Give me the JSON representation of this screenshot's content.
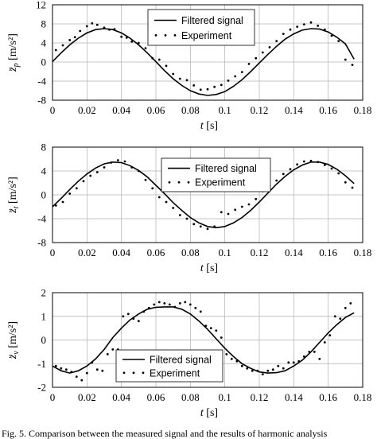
{
  "caption": "Fig. 5. Comparison between the measured signal and the results of harmonic analysis",
  "colors": {
    "line": "#000000",
    "grid": "#b0b0b0",
    "background": "#ffffff"
  },
  "chart_data": [
    {
      "type": "scatter",
      "ylabel_sym": "z̈",
      "ylabel_sub": "p",
      "ylabel_unit": "[m/s²]",
      "xlabel_sym": "t",
      "xlabel_unit": "[s]",
      "xlim": [
        0,
        0.18
      ],
      "ylim": [
        -8,
        12
      ],
      "xticks": [
        "0",
        "0.02",
        "0.04",
        "0.06",
        "0.08",
        "0.1",
        "0.12",
        "0.14",
        "0.16",
        "0.18"
      ],
      "yticks": [
        "-8",
        "-4",
        "0",
        "4",
        "8",
        "12"
      ],
      "xtick_vals": [
        0,
        0.02,
        0.04,
        0.06,
        0.08,
        0.1,
        0.12,
        0.14,
        0.16,
        0.18
      ],
      "ytick_vals": [
        -8,
        -4,
        0,
        4,
        8,
        12
      ],
      "grid": true,
      "legend": [
        "Filtered signal",
        "Experiment"
      ],
      "legend_loc": "top-center",
      "series": [
        {
          "name": "Filtered signal",
          "kind": "line",
          "x": [
            0,
            0.005,
            0.01,
            0.015,
            0.02,
            0.025,
            0.03,
            0.035,
            0.04,
            0.045,
            0.05,
            0.055,
            0.06,
            0.065,
            0.07,
            0.075,
            0.08,
            0.085,
            0.09,
            0.095,
            0.1,
            0.105,
            0.11,
            0.115,
            0.12,
            0.125,
            0.13,
            0.135,
            0.14,
            0.145,
            0.15,
            0.155,
            0.16,
            0.165,
            0.17,
            0.175
          ],
          "y": [
            0.1,
            1.9,
            3.6,
            5.0,
            6.1,
            6.8,
            7.0,
            6.8,
            6.1,
            5.0,
            3.6,
            1.9,
            0.1,
            -1.8,
            -3.5,
            -4.9,
            -6.0,
            -6.7,
            -7.0,
            -6.8,
            -6.2,
            -5.1,
            -3.7,
            -2.0,
            -0.2,
            1.6,
            3.3,
            4.8,
            5.9,
            6.7,
            7.0,
            6.9,
            6.3,
            5.2,
            3.8,
            0.6
          ]
        },
        {
          "name": "Experiment",
          "kind": "points",
          "x": [
            0.002,
            0.006,
            0.01,
            0.013,
            0.016,
            0.02,
            0.023,
            0.026,
            0.03,
            0.033,
            0.036,
            0.04,
            0.043,
            0.046,
            0.05,
            0.054,
            0.058,
            0.062,
            0.066,
            0.07,
            0.074,
            0.078,
            0.082,
            0.086,
            0.09,
            0.094,
            0.098,
            0.102,
            0.106,
            0.11,
            0.114,
            0.118,
            0.122,
            0.126,
            0.13,
            0.134,
            0.138,
            0.142,
            0.146,
            0.15,
            0.154,
            0.158,
            0.162,
            0.166,
            0.17,
            0.174
          ],
          "y": [
            2.5,
            3.5,
            4.6,
            5.2,
            6.5,
            7.5,
            8.1,
            7.8,
            7.2,
            6.8,
            6.9,
            5.3,
            5.1,
            4.3,
            4.0,
            2.9,
            0.8,
            0.5,
            -0.8,
            -2.5,
            -3.5,
            -3.8,
            -4.9,
            -5.8,
            -5.7,
            -5.2,
            -4.8,
            -3.9,
            -3.0,
            -2.1,
            -0.4,
            0.8,
            2.0,
            3.1,
            4.4,
            5.9,
            6.8,
            7.4,
            7.9,
            8.3,
            7.6,
            6.8,
            5.5,
            4.4,
            0.5,
            -0.6
          ]
        }
      ]
    },
    {
      "type": "scatter",
      "ylabel_sym": "z̈",
      "ylabel_sub": "t",
      "ylabel_unit": "[m/s²]",
      "xlabel_sym": "t",
      "xlabel_unit": "[s]",
      "xlim": [
        0,
        0.18
      ],
      "ylim": [
        -8,
        8
      ],
      "xticks": [
        "0",
        "0.02",
        "0.04",
        "0.06",
        "0.08",
        "0.1",
        "0.12",
        "0.14",
        "0.16",
        "0.18"
      ],
      "yticks": [
        "-8",
        "-4",
        "0",
        "4",
        "8"
      ],
      "xtick_vals": [
        0,
        0.02,
        0.04,
        0.06,
        0.08,
        0.1,
        0.12,
        0.14,
        0.16,
        0.18
      ],
      "ytick_vals": [
        -8,
        -4,
        0,
        4,
        8
      ],
      "grid": true,
      "legend": [
        "Filtered signal",
        "Experiment"
      ],
      "legend_loc": "top-right",
      "series": [
        {
          "name": "Filtered signal",
          "kind": "line",
          "x": [
            0,
            0.005,
            0.01,
            0.015,
            0.02,
            0.025,
            0.03,
            0.035,
            0.04,
            0.045,
            0.05,
            0.055,
            0.06,
            0.065,
            0.07,
            0.075,
            0.08,
            0.085,
            0.09,
            0.095,
            0.1,
            0.105,
            0.11,
            0.115,
            0.12,
            0.125,
            0.13,
            0.135,
            0.14,
            0.145,
            0.15,
            0.155,
            0.16,
            0.165,
            0.17,
            0.175
          ],
          "y": [
            -2.0,
            -0.6,
            0.9,
            2.3,
            3.5,
            4.5,
            5.2,
            5.5,
            5.4,
            4.9,
            4.1,
            3.0,
            1.6,
            0.2,
            -1.3,
            -2.6,
            -3.8,
            -4.7,
            -5.3,
            -5.5,
            -5.3,
            -4.7,
            -3.8,
            -2.6,
            -1.2,
            0.3,
            1.8,
            3.1,
            4.2,
            5.0,
            5.5,
            5.5,
            5.1,
            4.3,
            3.2,
            1.9
          ]
        },
        {
          "name": "Experiment",
          "kind": "points",
          "x": [
            0.002,
            0.006,
            0.01,
            0.014,
            0.018,
            0.022,
            0.026,
            0.03,
            0.034,
            0.038,
            0.042,
            0.046,
            0.05,
            0.054,
            0.058,
            0.062,
            0.066,
            0.07,
            0.074,
            0.078,
            0.082,
            0.086,
            0.09,
            0.094,
            0.098,
            0.102,
            0.106,
            0.11,
            0.114,
            0.118,
            0.122,
            0.126,
            0.13,
            0.134,
            0.138,
            0.142,
            0.146,
            0.15,
            0.154,
            0.158,
            0.162,
            0.166,
            0.17,
            0.174
          ],
          "y": [
            -1.8,
            -1.2,
            0.2,
            1.1,
            2.3,
            3.2,
            3.8,
            4.6,
            5.4,
            5.8,
            5.6,
            4.6,
            4.0,
            2.5,
            1.1,
            -0.4,
            -1.2,
            -2.2,
            -3.4,
            -4.0,
            -4.9,
            -5.3,
            -5.7,
            -5.3,
            -2.9,
            -3.2,
            -2.5,
            -2.0,
            -1.6,
            -0.7,
            0.6,
            1.5,
            2.4,
            3.5,
            4.3,
            5.1,
            5.6,
            5.7,
            5.5,
            5.0,
            4.4,
            3.6,
            2.1,
            1.2
          ]
        }
      ]
    },
    {
      "type": "scatter",
      "ylabel_sym": "z̈",
      "ylabel_sub": "v",
      "ylabel_unit": "[m/s²]",
      "xlabel_sym": "t",
      "xlabel_unit": "[s]",
      "xlim": [
        0,
        0.18
      ],
      "ylim": [
        -2,
        2
      ],
      "xticks": [
        "0",
        "0.02",
        "0.04",
        "0.06",
        "0.08",
        "0.1",
        "0.12",
        "0.14",
        "0.16",
        "0.18"
      ],
      "yticks": [
        "-2",
        "-1",
        "0",
        "1",
        "2"
      ],
      "xtick_vals": [
        0,
        0.02,
        0.04,
        0.06,
        0.08,
        0.1,
        0.12,
        0.14,
        0.16,
        0.18
      ],
      "ytick_vals": [
        -2,
        -1,
        0,
        1,
        2
      ],
      "grid": true,
      "legend": [
        "Filtered signal",
        "Experiment"
      ],
      "legend_loc": "bottom-left",
      "series": [
        {
          "name": "Filtered signal",
          "kind": "line",
          "x": [
            0,
            0.005,
            0.01,
            0.015,
            0.02,
            0.025,
            0.03,
            0.035,
            0.04,
            0.045,
            0.05,
            0.055,
            0.06,
            0.065,
            0.07,
            0.075,
            0.08,
            0.085,
            0.09,
            0.095,
            0.1,
            0.105,
            0.11,
            0.115,
            0.12,
            0.125,
            0.13,
            0.135,
            0.14,
            0.145,
            0.15,
            0.155,
            0.16,
            0.165,
            0.17,
            0.175
          ],
          "y": [
            -1.1,
            -1.3,
            -1.4,
            -1.3,
            -1.1,
            -0.8,
            -0.4,
            0.1,
            0.5,
            0.85,
            1.1,
            1.3,
            1.38,
            1.4,
            1.4,
            1.3,
            1.1,
            0.8,
            0.45,
            0.05,
            -0.35,
            -0.7,
            -1.0,
            -1.2,
            -1.35,
            -1.4,
            -1.38,
            -1.3,
            -1.1,
            -0.85,
            -0.5,
            -0.1,
            0.3,
            0.65,
            0.95,
            1.15
          ]
        },
        {
          "name": "Experiment",
          "kind": "points",
          "x": [
            0.002,
            0.005,
            0.008,
            0.011,
            0.014,
            0.017,
            0.02,
            0.023,
            0.026,
            0.029,
            0.032,
            0.035,
            0.038,
            0.041,
            0.044,
            0.047,
            0.05,
            0.053,
            0.056,
            0.059,
            0.062,
            0.065,
            0.068,
            0.071,
            0.074,
            0.077,
            0.08,
            0.083,
            0.086,
            0.089,
            0.092,
            0.095,
            0.098,
            0.101,
            0.104,
            0.107,
            0.11,
            0.113,
            0.116,
            0.119,
            0.122,
            0.125,
            0.128,
            0.131,
            0.134,
            0.137,
            0.14,
            0.143,
            0.146,
            0.149,
            0.152,
            0.155,
            0.158,
            0.161,
            0.164,
            0.167,
            0.17,
            0.173
          ],
          "y": [
            -1.1,
            -1.2,
            -1.25,
            -1.35,
            -1.55,
            -1.7,
            -1.4,
            -0.95,
            -1.25,
            -1.3,
            -0.6,
            -0.4,
            -0.4,
            1.0,
            1.1,
            0.9,
            0.8,
            1.2,
            1.35,
            1.5,
            1.6,
            1.55,
            1.5,
            1.4,
            1.55,
            1.6,
            1.5,
            1.35,
            1.2,
            0.6,
            0.5,
            0.4,
            0.1,
            -0.6,
            -0.8,
            -0.9,
            -1.1,
            -1.2,
            -1.3,
            -1.3,
            -1.45,
            -1.3,
            -1.25,
            -1.1,
            -1.2,
            -0.95,
            -0.95,
            -0.9,
            -0.7,
            -0.5,
            -0.5,
            -0.8,
            -0.1,
            0.2,
            1.0,
            0.9,
            1.35,
            1.55
          ]
        }
      ]
    }
  ]
}
